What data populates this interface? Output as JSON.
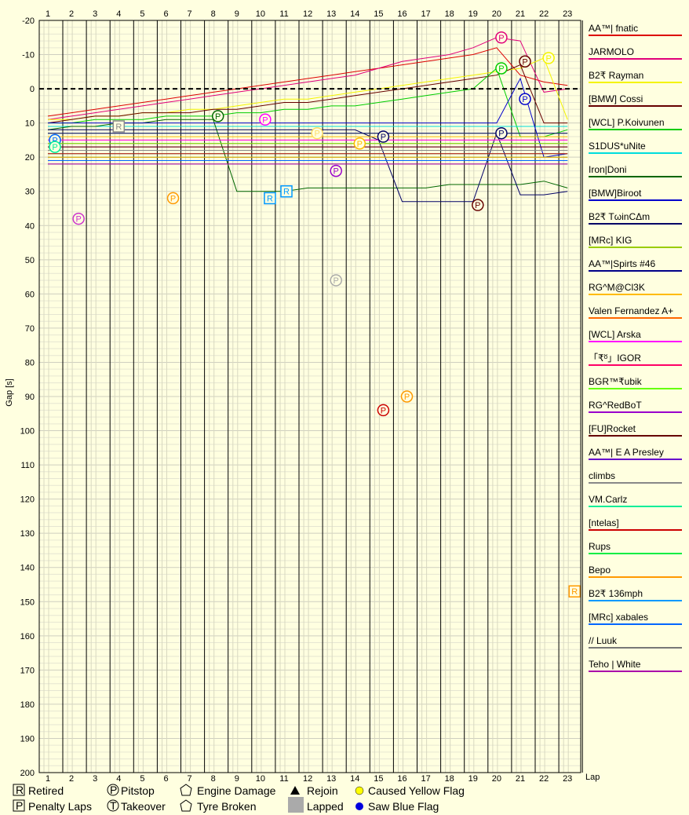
{
  "chart_data": {
    "type": "line",
    "xlabel": "Lap",
    "ylabel": "Gap [s]",
    "x_ticks": [
      1,
      2,
      3,
      4,
      5,
      6,
      7,
      8,
      9,
      10,
      11,
      12,
      13,
      14,
      15,
      16,
      17,
      18,
      19,
      20,
      21,
      22,
      23
    ],
    "y_ticks": [
      -20,
      -10,
      0,
      10,
      20,
      30,
      40,
      50,
      60,
      70,
      80,
      90,
      100,
      110,
      120,
      130,
      140,
      150,
      160,
      170,
      180,
      190,
      200
    ],
    "xlim": [
      0.6,
      23.7
    ],
    "ylim": [
      -20,
      200
    ],
    "y_inverted": true,
    "grid": true,
    "legend_position": "right",
    "series": [
      {
        "name": "AA™| fnatic",
        "color": "#dd0000",
        "values": [
          8,
          7,
          6,
          5,
          4,
          3,
          2,
          1,
          0,
          -1,
          -2,
          -3,
          -4,
          -5,
          -6,
          -7,
          -8,
          -9,
          -10,
          -12,
          -4,
          -2,
          -1
        ]
      },
      {
        "name": "JARMOLO",
        "color": "#e0007a",
        "values": [
          9,
          8,
          7,
          6,
          5,
          4,
          3,
          2,
          1,
          0,
          -1,
          -2,
          -3,
          -4,
          -6,
          -8,
          -9,
          -10,
          -12,
          -15,
          -14,
          1,
          0
        ]
      },
      {
        "name": "B2₹ Rayman",
        "color": "#f4f400",
        "values": [
          9,
          9,
          8,
          8,
          7,
          7,
          6,
          6,
          5,
          4,
          3,
          3,
          2,
          1,
          0,
          -1,
          -2,
          -3,
          -4,
          -5,
          -6,
          -9,
          9
        ]
      },
      {
        "name": "[BMW] Cossi",
        "color": "#660000",
        "values": [
          10,
          9,
          8,
          8,
          7,
          7,
          7,
          6,
          6,
          5,
          4,
          4,
          3,
          2,
          1,
          0,
          -1,
          -2,
          -3,
          -4,
          -7,
          10,
          10
        ]
      },
      {
        "name": "[WCL] P.Koivunen",
        "color": "#00cc00",
        "values": [
          10,
          10,
          9,
          9,
          9,
          8,
          8,
          8,
          7,
          7,
          6,
          6,
          5,
          5,
          4,
          3,
          2,
          1,
          0,
          -6,
          14,
          14,
          12
        ]
      },
      {
        "name": "S1DUS*uNite",
        "color": "#00dddd",
        "values": [
          11,
          11,
          11,
          11,
          11,
          11,
          11,
          11,
          11,
          11,
          11,
          11,
          11,
          11,
          11,
          11,
          11,
          11,
          11,
          11,
          11,
          11,
          11
        ]
      },
      {
        "name": "Iron|Doni",
        "color": "#006600",
        "values": [
          12,
          11,
          11,
          10,
          10,
          9,
          9,
          9,
          30,
          30,
          30,
          29,
          29,
          29,
          29,
          29,
          29,
          28,
          28,
          28,
          28,
          27,
          29
        ]
      },
      {
        "name": "[BMW]Biroot",
        "color": "#0000cc",
        "values": [
          10,
          10,
          10,
          10,
          10,
          10,
          10,
          10,
          10,
          10,
          10,
          10,
          10,
          10,
          10,
          10,
          10,
          10,
          10,
          10,
          -3,
          20,
          19
        ]
      },
      {
        "name": "B2₹ TωinCΔm",
        "color": "#000066",
        "values": [
          12,
          12,
          12,
          12,
          12,
          12,
          12,
          12,
          12,
          12,
          12,
          12,
          12,
          12,
          15,
          33,
          33,
          33,
          33,
          13,
          31,
          31,
          30
        ]
      },
      {
        "name": "[MRc] KIG",
        "color": "#99cc00",
        "values": [
          13,
          13,
          13,
          13,
          13,
          13,
          13,
          13,
          13,
          13,
          13,
          13,
          13,
          13,
          13,
          13,
          13,
          13,
          13,
          13,
          13,
          13,
          13
        ]
      },
      {
        "name": "AA™|Spirts #46",
        "color": "#000088",
        "values": [
          13,
          13,
          13,
          13,
          13,
          13,
          13,
          13,
          13,
          13,
          13,
          13,
          13,
          13,
          13,
          13,
          13,
          13,
          13,
          13,
          13,
          13,
          13
        ]
      },
      {
        "name": "RG^M@Cl3K",
        "color": "#ffbb00",
        "values": [
          14,
          14,
          14,
          14,
          14,
          14,
          14,
          14,
          14,
          14,
          14,
          14,
          14,
          14,
          14,
          14,
          14,
          14,
          14,
          14,
          14,
          14,
          14
        ]
      },
      {
        "name": "Valen Fernandez A+",
        "color": "#ff6600",
        "values": [
          15,
          15,
          15,
          15,
          15,
          15,
          15,
          15,
          15,
          15,
          15,
          15,
          15,
          15,
          15,
          15,
          15,
          15,
          15,
          15,
          15,
          15,
          15
        ]
      },
      {
        "name": "[WCL] Arska",
        "color": "#ff00ff",
        "values": [
          15,
          15,
          15,
          15,
          15,
          15,
          15,
          15,
          15,
          15,
          15,
          15,
          15,
          15,
          15,
          15,
          15,
          15,
          15,
          15,
          15,
          15,
          15
        ]
      },
      {
        "name": "「₹ᴽ」IGOR",
        "color": "#ff0066",
        "values": [
          16,
          16,
          16,
          16,
          16,
          16,
          16,
          16,
          16,
          16,
          16,
          16,
          16,
          16,
          16,
          16,
          16,
          16,
          16,
          16,
          16,
          16,
          16
        ]
      },
      {
        "name": "BGR™₹ubik",
        "color": "#66ff00",
        "values": [
          16,
          16,
          16,
          16,
          16,
          16,
          16,
          16,
          16,
          16,
          16,
          16,
          16,
          16,
          16,
          16,
          16,
          16,
          16,
          16,
          16,
          16,
          16
        ]
      },
      {
        "name": "RG^RedBoT",
        "color": "#9900cc",
        "values": [
          17,
          17,
          17,
          17,
          17,
          17,
          17,
          17,
          17,
          17,
          17,
          17,
          17,
          17,
          17,
          17,
          17,
          17,
          17,
          17,
          17,
          17,
          17
        ]
      },
      {
        "name": "[FU]Rocket",
        "color": "#660000",
        "values": [
          17,
          17,
          17,
          17,
          17,
          17,
          17,
          17,
          17,
          17,
          17,
          17,
          17,
          17,
          17,
          17,
          17,
          17,
          17,
          17,
          17,
          17,
          17
        ]
      },
      {
        "name": "AA™| E A Presley",
        "color": "#6600cc",
        "values": [
          18,
          18,
          18,
          18,
          18,
          18,
          18,
          18,
          18,
          18,
          18,
          18,
          18,
          18,
          18,
          18,
          18,
          18,
          18,
          18,
          18,
          18,
          18
        ]
      },
      {
        "name": "climbs",
        "color": "#888888",
        "values": [
          18,
          18,
          18,
          18,
          18,
          18,
          18,
          18,
          18,
          18,
          18,
          18,
          18,
          18,
          18,
          18,
          18,
          18,
          18,
          18,
          18,
          18,
          18
        ]
      },
      {
        "name": "VM.Carlz",
        "color": "#00ee99",
        "values": [
          19,
          19,
          19,
          19,
          19,
          19,
          19,
          19,
          19,
          19,
          19,
          19,
          19,
          19,
          19,
          19,
          19,
          19,
          19,
          19,
          19,
          19,
          19
        ]
      },
      {
        "name": "[ntelas]",
        "color": "#cc0000",
        "values": [
          19,
          19,
          19,
          19,
          19,
          19,
          19,
          19,
          19,
          19,
          19,
          19,
          19,
          19,
          19,
          19,
          19,
          19,
          19,
          19,
          19,
          19,
          19
        ]
      },
      {
        "name": "Rups",
        "color": "#00ee44",
        "values": [
          20,
          20,
          20,
          20,
          20,
          20,
          20,
          20,
          20,
          20,
          20,
          20,
          20,
          20,
          20,
          20,
          20,
          20,
          20,
          20,
          20,
          20,
          20
        ]
      },
      {
        "name": "Bepo",
        "color": "#ff9900",
        "values": [
          20,
          20,
          20,
          20,
          20,
          20,
          20,
          20,
          20,
          20,
          20,
          20,
          20,
          20,
          20,
          20,
          20,
          20,
          20,
          20,
          20,
          20,
          20
        ]
      },
      {
        "name": "B2₹ 136mph",
        "color": "#0099ff",
        "values": [
          21,
          21,
          21,
          21,
          21,
          21,
          21,
          21,
          21,
          21,
          21,
          21,
          21,
          21,
          21,
          21,
          21,
          21,
          21,
          21,
          21,
          21,
          21
        ]
      },
      {
        "name": "[MRc] xabales",
        "color": "#0066ff",
        "values": [
          21,
          21,
          21,
          21,
          21,
          21,
          21,
          21,
          21,
          21,
          21,
          21,
          21,
          21,
          21,
          21,
          21,
          21,
          21,
          21,
          21,
          21,
          21
        ]
      },
      {
        "name": "// Luuk",
        "color": "#777777",
        "values": [
          22,
          22,
          22,
          22,
          22,
          22,
          22,
          22,
          22,
          22,
          22,
          22,
          22,
          22,
          22,
          22,
          22,
          22,
          22,
          22,
          22,
          22,
          22
        ]
      },
      {
        "name": "Teho | White",
        "color": "#aa00aa",
        "values": [
          22,
          22,
          22,
          22,
          22,
          22,
          22,
          22,
          22,
          22,
          22,
          22,
          22,
          22,
          22,
          22,
          22,
          22,
          22,
          22,
          22,
          22,
          22
        ]
      }
    ],
    "markers": [
      {
        "type": "P",
        "lap": 20.2,
        "gap": -15,
        "color": "#e0007a"
      },
      {
        "type": "P",
        "lap": 21.2,
        "gap": -8,
        "color": "#660000"
      },
      {
        "type": "P",
        "lap": 22.2,
        "gap": -9,
        "color": "#f4f400"
      },
      {
        "type": "P",
        "lap": 20.2,
        "gap": -6,
        "color": "#00cc00"
      },
      {
        "type": "P",
        "lap": 21.2,
        "gap": 3,
        "color": "#0000cc"
      },
      {
        "type": "P",
        "lap": 20.2,
        "gap": 13,
        "color": "#000066"
      },
      {
        "type": "P",
        "lap": 15.2,
        "gap": 14,
        "color": "#000066"
      },
      {
        "type": "P",
        "lap": 8.2,
        "gap": 8,
        "color": "#006600"
      },
      {
        "type": "P",
        "lap": 10.2,
        "gap": 9,
        "color": "#ff00ff"
      },
      {
        "type": "P",
        "lap": 12.4,
        "gap": 13,
        "color": "#ffdd66"
      },
      {
        "type": "P",
        "lap": 14.2,
        "gap": 16,
        "color": "#ffbb00"
      },
      {
        "type": "P",
        "lap": 13.2,
        "gap": 24,
        "color": "#9900cc"
      },
      {
        "type": "P",
        "lap": 19.2,
        "gap": 34,
        "color": "#660000"
      },
      {
        "type": "P",
        "lap": 6.3,
        "gap": 32,
        "color": "#ff9900"
      },
      {
        "type": "P",
        "lap": 2.3,
        "gap": 38,
        "color": "#cc33cc"
      },
      {
        "type": "P",
        "lap": 1.3,
        "gap": 15,
        "color": "#0066ff"
      },
      {
        "type": "P",
        "lap": 1.3,
        "gap": 17,
        "color": "#00ee99"
      },
      {
        "type": "P",
        "lap": 13.2,
        "gap": 56,
        "color": "#aaaaaa"
      },
      {
        "type": "P",
        "lap": 15.2,
        "gap": 94,
        "color": "#cc0000"
      },
      {
        "type": "P",
        "lap": 16.2,
        "gap": 90,
        "color": "#ff9900"
      },
      {
        "type": "R",
        "lap": 4.0,
        "gap": 11,
        "color": "#888888"
      },
      {
        "type": "R",
        "lap": 10.4,
        "gap": 32,
        "color": "#0099ff"
      },
      {
        "type": "R",
        "lap": 11.1,
        "gap": 30,
        "color": "#0099ff"
      },
      {
        "type": "R",
        "lap": 23.3,
        "gap": 147,
        "color": "#ff9900"
      }
    ]
  },
  "key": {
    "retired": "Retired",
    "penalty": "Penalty Laps",
    "pitstop": "Pitstop",
    "takeover": "Takeover",
    "engine": "Engine Damage",
    "tyre": "Tyre Broken",
    "rejoin": "Rejoin",
    "lapped": "Lapped",
    "yellow": "Caused Yellow Flag",
    "blue": "Saw Blue Flag"
  }
}
